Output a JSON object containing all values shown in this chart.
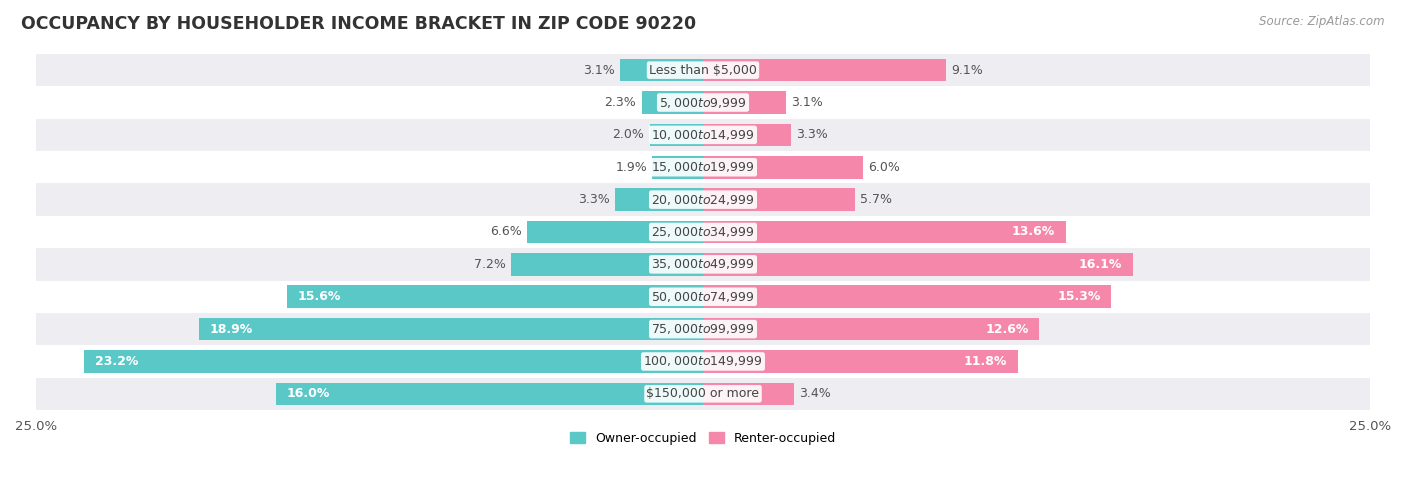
{
  "title": "OCCUPANCY BY HOUSEHOLDER INCOME BRACKET IN ZIP CODE 90220",
  "source": "Source: ZipAtlas.com",
  "categories": [
    "Less than $5,000",
    "$5,000 to $9,999",
    "$10,000 to $14,999",
    "$15,000 to $19,999",
    "$20,000 to $24,999",
    "$25,000 to $34,999",
    "$35,000 to $49,999",
    "$50,000 to $74,999",
    "$75,000 to $99,999",
    "$100,000 to $149,999",
    "$150,000 or more"
  ],
  "owner_values": [
    3.1,
    2.3,
    2.0,
    1.9,
    3.3,
    6.6,
    7.2,
    15.6,
    18.9,
    23.2,
    16.0
  ],
  "renter_values": [
    9.1,
    3.1,
    3.3,
    6.0,
    5.7,
    13.6,
    16.1,
    15.3,
    12.6,
    11.8,
    3.4
  ],
  "owner_color": "#5bc8c8",
  "renter_color": "#f487aa",
  "owner_label": "Owner-occupied",
  "renter_label": "Renter-occupied",
  "xlim": 25.0,
  "bar_height": 0.7,
  "row_bg_light": "#ededf2",
  "row_bg_white": "#ffffff",
  "title_fontsize": 12.5,
  "label_fontsize": 9.0,
  "value_fontsize": 9.0,
  "tick_fontsize": 9.5,
  "source_fontsize": 8.5
}
